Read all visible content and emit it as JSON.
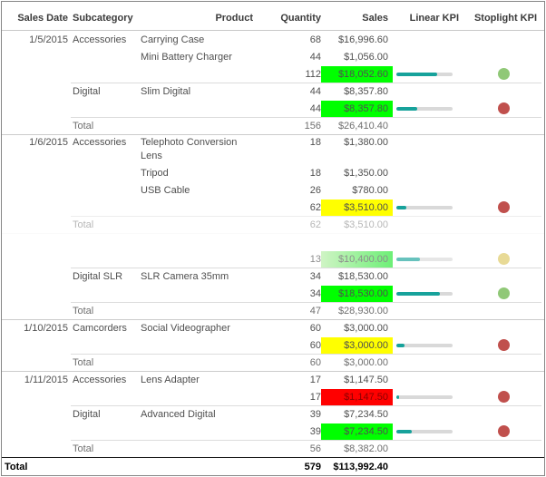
{
  "table": {
    "columns": [
      "Sales Date",
      "Subcategory",
      "Product",
      "Quantity",
      "Sales",
      "Linear KPI",
      "Stoplight KPI"
    ],
    "rows": [
      {
        "date": "1/5/2015",
        "subcategory": "Accessories",
        "product": "Carrying Case",
        "quantity": "68",
        "sales": "$16,996.60",
        "type": "data"
      },
      {
        "product": "Mini Battery Charger",
        "quantity": "44",
        "sales": "$1,056.00",
        "type": "data"
      },
      {
        "quantity": "112",
        "sales": "$18,052.60",
        "type": "subtotal",
        "highlight": "green",
        "bar": 0.73,
        "light": "green"
      },
      {
        "subcategory": "Digital",
        "product": "Slim Digital",
        "quantity": "44",
        "sales": "$8,357.80",
        "type": "data",
        "sep": "sub"
      },
      {
        "quantity": "44",
        "sales": "$8,357.80",
        "type": "subtotal",
        "highlight": "green",
        "bar": 0.37,
        "light": "red"
      },
      {
        "subcategory": "Total",
        "quantity": "156",
        "sales": "$26,410.40",
        "type": "group-total",
        "sep": "sub"
      },
      {
        "date": "1/6/2015",
        "subcategory": "Accessories",
        "product": "Telephoto Conversion Lens",
        "quantity": "18",
        "sales": "$1,380.00",
        "type": "data",
        "sep": "full",
        "tall": true
      },
      {
        "product": "Tripod",
        "quantity": "18",
        "sales": "$1,350.00",
        "type": "data"
      },
      {
        "product": "USB Cable",
        "quantity": "26",
        "sales": "$780.00",
        "type": "data"
      },
      {
        "quantity": "62",
        "sales": "$3,510.00",
        "type": "subtotal",
        "highlight": "yellow",
        "bar": 0.18,
        "light": "red"
      },
      {
        "subcategory": "Total",
        "quantity": "62",
        "sales": "$3,510.00",
        "type": "group-total",
        "sep": "sub",
        "fade": 0.5
      },
      {
        "type": "data",
        "sep": "full",
        "fade": 0.1
      },
      {
        "quantity": "13",
        "sales": "$10,400.00",
        "type": "subtotal",
        "highlight": "green-fade",
        "bar": 0.42,
        "light": "yellow",
        "fade": 0.65
      },
      {
        "subcategory": "Digital SLR",
        "product": "SLR Camera 35mm",
        "quantity": "34",
        "sales": "$18,530.00",
        "type": "data",
        "sep": "sub"
      },
      {
        "quantity": "34",
        "sales": "$18,530.00",
        "type": "subtotal",
        "highlight": "green",
        "bar": 0.77,
        "light": "green"
      },
      {
        "subcategory": "Total",
        "quantity": "47",
        "sales": "$28,930.00",
        "type": "group-total",
        "sep": "sub"
      },
      {
        "date": "1/10/2015",
        "subcategory": "Camcorders",
        "product": "Social Videographer",
        "quantity": "60",
        "sales": "$3,000.00",
        "type": "data",
        "sep": "full"
      },
      {
        "quantity": "60",
        "sales": "$3,000.00",
        "type": "subtotal",
        "highlight": "yellow",
        "bar": 0.15,
        "light": "red"
      },
      {
        "subcategory": "Total",
        "quantity": "60",
        "sales": "$3,000.00",
        "type": "group-total",
        "sep": "sub"
      },
      {
        "date": "1/11/2015",
        "subcategory": "Accessories",
        "product": "Lens Adapter",
        "quantity": "17",
        "sales": "$1,147.50",
        "type": "data",
        "sep": "full"
      },
      {
        "quantity": "17",
        "sales": "$1,147.50",
        "type": "subtotal",
        "highlight": "red",
        "bar": 0.05,
        "light": "red"
      },
      {
        "subcategory": "Digital",
        "product": "Advanced Digital",
        "quantity": "39",
        "sales": "$7,234.50",
        "type": "data",
        "sep": "sub"
      },
      {
        "quantity": "39",
        "sales": "$7,234.50",
        "type": "subtotal",
        "highlight": "green",
        "bar": 0.28,
        "light": "red"
      },
      {
        "subcategory": "Total",
        "quantity": "56",
        "sales": "$8,382.00",
        "type": "group-total",
        "sep": "sub"
      },
      {
        "date": "Total",
        "quantity": "579",
        "sales": "$113,992.40",
        "type": "grand-total",
        "sep": "black"
      }
    ]
  },
  "colors": {
    "highlight_green": "#00ff00",
    "highlight_yellow": "#ffff00",
    "highlight_red": "#ff0000",
    "red_cell_text": "#8b0000",
    "fade_green_left": "#b7efa6",
    "fade_green_right": "#1fe82e",
    "bar_fill": "#17a29b",
    "bar_track": "#d9d9d9",
    "light_green": "#90c877",
    "light_red": "#c0504d",
    "light_yellow": "#dcc75f"
  }
}
